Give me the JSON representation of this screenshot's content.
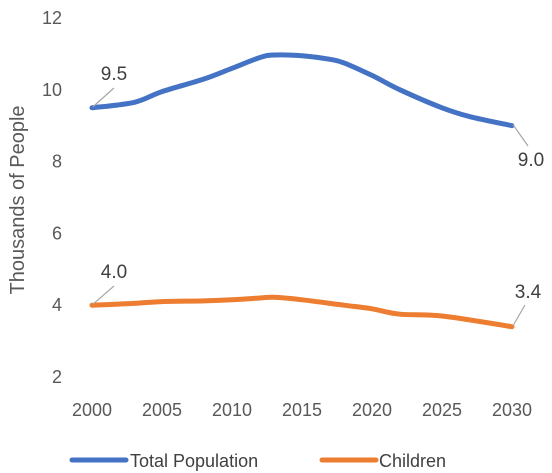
{
  "chart_data": {
    "type": "line",
    "title": "",
    "xlabel": "",
    "ylabel": "Thousands of People",
    "ylim": [
      2,
      12
    ],
    "xlim": [
      2000,
      2030
    ],
    "y_ticks": [
      "2",
      "4",
      "6",
      "8",
      "10",
      "12"
    ],
    "x_ticks": [
      "2000",
      "2005",
      "2010",
      "2015",
      "2020",
      "2025",
      "2030"
    ],
    "grid": false,
    "legend": "bottom",
    "series": [
      {
        "name": "Total Population",
        "color": "#4472C4",
        "x": [
          2000,
          2003,
          2005,
          2008,
          2010,
          2012,
          2013,
          2015,
          2017,
          2018,
          2020,
          2022,
          2025,
          2027,
          2030
        ],
        "y": [
          9.5,
          9.65,
          9.95,
          10.3,
          10.6,
          10.9,
          10.97,
          10.95,
          10.85,
          10.75,
          10.4,
          10.0,
          9.5,
          9.25,
          9.0
        ],
        "labels": [
          {
            "x": 2000,
            "y": 9.5,
            "text": "9.5"
          },
          {
            "x": 2030,
            "y": 9.0,
            "text": "9.0"
          }
        ]
      },
      {
        "name": "Children",
        "color": "#ED7D31",
        "x": [
          2000,
          2003,
          2005,
          2008,
          2010,
          2012,
          2013,
          2015,
          2018,
          2020,
          2022,
          2025,
          2030
        ],
        "y": [
          4.0,
          4.05,
          4.1,
          4.12,
          4.15,
          4.2,
          4.22,
          4.15,
          4.0,
          3.9,
          3.75,
          3.7,
          3.4
        ],
        "labels": [
          {
            "x": 2000,
            "y": 4.0,
            "text": "4.0"
          },
          {
            "x": 2030,
            "y": 3.4,
            "text": "3.4"
          }
        ]
      }
    ]
  }
}
